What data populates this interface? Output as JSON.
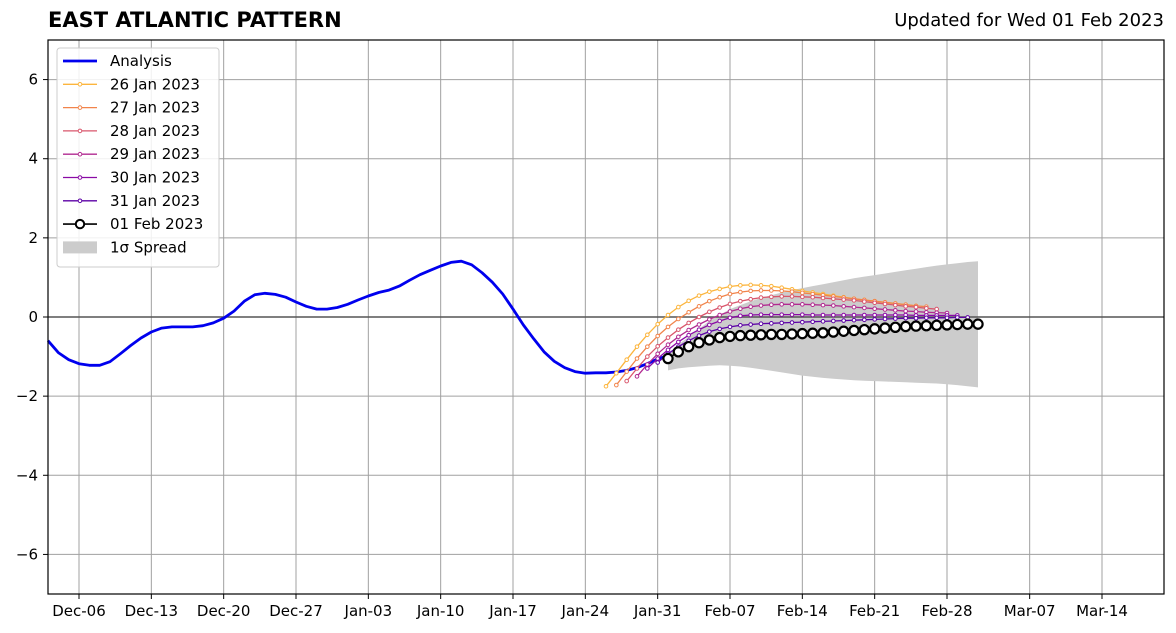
{
  "header": {
    "title": "EAST ATLANTIC PATTERN",
    "updated": "Updated for Wed 01 Feb 2023"
  },
  "chart_data": {
    "type": "line",
    "xlim": [
      "2023-12-03",
      "2024-03-20"
    ],
    "ylim": [
      -7,
      7
    ],
    "yticks": [
      -6,
      -4,
      -2,
      0,
      2,
      4,
      6
    ],
    "ytick_labels": [
      "−6",
      "−4",
      "−2",
      "0",
      "2",
      "4",
      "6"
    ],
    "xticks": [
      {
        "date": "2023-12-06",
        "label": "Dec-06"
      },
      {
        "date": "2023-12-13",
        "label": "Dec-13"
      },
      {
        "date": "2023-12-20",
        "label": "Dec-20"
      },
      {
        "date": "2023-12-27",
        "label": "Dec-27"
      },
      {
        "date": "2024-01-03",
        "label": "Jan-03"
      },
      {
        "date": "2024-01-10",
        "label": "Jan-10"
      },
      {
        "date": "2024-01-17",
        "label": "Jan-17"
      },
      {
        "date": "2024-01-24",
        "label": "Jan-24"
      },
      {
        "date": "2024-01-31",
        "label": "Jan-31"
      },
      {
        "date": "2024-02-07",
        "label": "Feb-07"
      },
      {
        "date": "2024-02-14",
        "label": "Feb-14"
      },
      {
        "date": "2024-02-21",
        "label": "Feb-21"
      },
      {
        "date": "2024-02-28",
        "label": "Feb-28"
      },
      {
        "date": "2024-03-07",
        "label": "Mar-07"
      },
      {
        "date": "2024-03-14",
        "label": "Mar-14"
      }
    ],
    "grid": true,
    "legend": {
      "placement": "top-left",
      "entries": [
        {
          "label": "Analysis",
          "color": "#0000ee",
          "kind": "line"
        },
        {
          "label": "26 Jan 2023",
          "color": "#fcb53d",
          "kind": "dots"
        },
        {
          "label": "27 Jan 2023",
          "color": "#f1844b",
          "kind": "dots"
        },
        {
          "label": "28 Jan 2023",
          "color": "#d9566c",
          "kind": "dots"
        },
        {
          "label": "29 Jan 2023",
          "color": "#b12a90",
          "kind": "dots"
        },
        {
          "label": "30 Jan 2023",
          "color": "#8a0aa5",
          "kind": "dots"
        },
        {
          "label": "31 Jan 2023",
          "color": "#5c01a6",
          "kind": "dots"
        },
        {
          "label": "01 Feb 2023",
          "color": "#000000",
          "kind": "circles"
        },
        {
          "label": "1σ Spread",
          "color": "#cccccc",
          "kind": "patch"
        }
      ]
    },
    "analysis": {
      "name": "Analysis",
      "color": "#0000ee",
      "x": [
        "2023-12-03",
        "2023-12-04",
        "2023-12-05",
        "2023-12-06",
        "2023-12-07",
        "2023-12-08",
        "2023-12-09",
        "2023-12-10",
        "2023-12-11",
        "2023-12-12",
        "2023-12-13",
        "2023-12-14",
        "2023-12-15",
        "2023-12-16",
        "2023-12-17",
        "2023-12-18",
        "2023-12-19",
        "2023-12-20",
        "2023-12-21",
        "2023-12-22",
        "2023-12-23",
        "2023-12-24",
        "2023-12-25",
        "2023-12-26",
        "2023-12-27",
        "2023-12-28",
        "2023-12-29",
        "2023-12-30",
        "2023-12-31",
        "2024-01-01",
        "2024-01-02",
        "2024-01-03",
        "2024-01-04",
        "2024-01-05",
        "2024-01-06",
        "2024-01-07",
        "2024-01-08",
        "2024-01-09",
        "2024-01-10",
        "2024-01-11",
        "2024-01-12",
        "2024-01-13",
        "2024-01-14",
        "2024-01-15",
        "2024-01-16",
        "2024-01-17",
        "2024-01-18",
        "2024-01-19",
        "2024-01-20",
        "2024-01-21",
        "2024-01-22",
        "2024-01-23",
        "2024-01-24",
        "2024-01-25",
        "2024-01-26",
        "2024-01-27",
        "2024-01-28",
        "2024-01-29",
        "2024-01-30",
        "2024-01-31",
        "2024-02-01"
      ],
      "y": [
        -0.6,
        -0.9,
        -1.08,
        -1.18,
        -1.22,
        -1.22,
        -1.13,
        -0.93,
        -0.72,
        -0.53,
        -0.38,
        -0.28,
        -0.25,
        -0.25,
        -0.25,
        -0.22,
        -0.15,
        -0.03,
        0.15,
        0.4,
        0.56,
        0.6,
        0.57,
        0.5,
        0.38,
        0.27,
        0.2,
        0.2,
        0.24,
        0.32,
        0.43,
        0.53,
        0.62,
        0.68,
        0.78,
        0.93,
        1.07,
        1.18,
        1.29,
        1.38,
        1.41,
        1.32,
        1.12,
        0.88,
        0.58,
        0.2,
        -0.2,
        -0.55,
        -0.88,
        -1.12,
        -1.28,
        -1.38,
        -1.42,
        -1.41,
        -1.41,
        -1.39,
        -1.35,
        -1.28,
        -1.18,
        -1.06,
        -0.98
      ]
    },
    "forecasts": [
      {
        "name": "26 Jan 2023",
        "color": "#fcb53d",
        "start": "2024-01-26",
        "end": "2024-02-25",
        "y": [
          -1.75,
          -1.42,
          -1.08,
          -0.75,
          -0.45,
          -0.18,
          0.05,
          0.25,
          0.41,
          0.54,
          0.64,
          0.71,
          0.77,
          0.8,
          0.81,
          0.8,
          0.78,
          0.74,
          0.7,
          0.66,
          0.62,
          0.58,
          0.54,
          0.5,
          0.46,
          0.43,
          0.4,
          0.37,
          0.34,
          0.31,
          0.28
        ]
      },
      {
        "name": "27 Jan 2023",
        "color": "#f1844b",
        "start": "2024-01-27",
        "end": "2024-02-26",
        "y": [
          -1.72,
          -1.38,
          -1.05,
          -0.75,
          -0.48,
          -0.25,
          -0.05,
          0.12,
          0.27,
          0.4,
          0.5,
          0.58,
          0.63,
          0.66,
          0.67,
          0.67,
          0.66,
          0.64,
          0.61,
          0.58,
          0.55,
          0.52,
          0.49,
          0.46,
          0.43,
          0.4,
          0.37,
          0.34,
          0.31,
          0.28,
          0.26
        ]
      },
      {
        "name": "28 Jan 2023",
        "color": "#d9566c",
        "start": "2024-01-28",
        "end": "2024-02-27",
        "y": [
          -1.62,
          -1.3,
          -1.0,
          -0.74,
          -0.52,
          -0.32,
          -0.15,
          0.0,
          0.13,
          0.24,
          0.33,
          0.4,
          0.45,
          0.49,
          0.51,
          0.52,
          0.52,
          0.51,
          0.5,
          0.48,
          0.46,
          0.44,
          0.42,
          0.39,
          0.36,
          0.33,
          0.3,
          0.27,
          0.25,
          0.22,
          0.2
        ]
      },
      {
        "name": "29 Jan 2023",
        "color": "#b12a90",
        "start": "2024-01-29",
        "end": "2024-02-28",
        "y": [
          -1.5,
          -1.2,
          -0.93,
          -0.7,
          -0.5,
          -0.33,
          -0.19,
          -0.06,
          0.05,
          0.14,
          0.21,
          0.26,
          0.29,
          0.31,
          0.32,
          0.32,
          0.32,
          0.31,
          0.3,
          0.29,
          0.27,
          0.25,
          0.23,
          0.21,
          0.19,
          0.17,
          0.15,
          0.14,
          0.12,
          0.11,
          0.1
        ]
      },
      {
        "name": "30 Jan 2023",
        "color": "#8a0aa5",
        "start": "2024-01-30",
        "end": "2024-02-29",
        "y": [
          -1.3,
          -1.05,
          -0.83,
          -0.63,
          -0.46,
          -0.32,
          -0.2,
          -0.1,
          -0.02,
          0.03,
          0.05,
          0.06,
          0.06,
          0.06,
          0.06,
          0.06,
          0.05,
          0.05,
          0.05,
          0.05,
          0.05,
          0.05,
          0.05,
          0.05,
          0.05,
          0.05,
          0.04,
          0.04,
          0.04,
          0.04,
          0.04
        ]
      },
      {
        "name": "31 Jan 2023",
        "color": "#5c01a6",
        "start": "2024-01-31",
        "end": "2024-03-01",
        "y": [
          -1.15,
          -0.93,
          -0.75,
          -0.6,
          -0.47,
          -0.37,
          -0.3,
          -0.25,
          -0.21,
          -0.19,
          -0.17,
          -0.16,
          -0.15,
          -0.14,
          -0.13,
          -0.12,
          -0.11,
          -0.1,
          -0.09,
          -0.08,
          -0.07,
          -0.06,
          -0.05,
          -0.04,
          -0.03,
          -0.03,
          -0.02,
          -0.02,
          -0.02,
          -0.01,
          -0.01
        ]
      },
      {
        "name": "01 Feb 2023",
        "color": "#000000",
        "start": "2024-02-01",
        "end": "2024-03-02",
        "y": [
          -1.05,
          -0.88,
          -0.75,
          -0.65,
          -0.58,
          -0.52,
          -0.49,
          -0.47,
          -0.46,
          -0.45,
          -0.44,
          -0.44,
          -0.43,
          -0.42,
          -0.41,
          -0.4,
          -0.38,
          -0.36,
          -0.34,
          -0.32,
          -0.3,
          -0.28,
          -0.26,
          -0.24,
          -0.23,
          -0.22,
          -0.21,
          -0.2,
          -0.19,
          -0.18,
          -0.18
        ]
      }
    ],
    "spread": {
      "name": "1σ Spread",
      "color": "#cccccc",
      "start": "2024-02-01",
      "end": "2024-03-02",
      "upper": [
        -0.95,
        -0.7,
        -0.5,
        -0.3,
        -0.1,
        0.05,
        0.2,
        0.3,
        0.4,
        0.48,
        0.55,
        0.62,
        0.68,
        0.73,
        0.78,
        0.83,
        0.88,
        0.93,
        0.98,
        1.02,
        1.06,
        1.1,
        1.14,
        1.18,
        1.22,
        1.26,
        1.3,
        1.33,
        1.36,
        1.39,
        1.41
      ],
      "lower": [
        -1.35,
        -1.3,
        -1.27,
        -1.25,
        -1.23,
        -1.22,
        -1.23,
        -1.25,
        -1.28,
        -1.32,
        -1.36,
        -1.4,
        -1.44,
        -1.48,
        -1.51,
        -1.54,
        -1.56,
        -1.58,
        -1.6,
        -1.61,
        -1.62,
        -1.63,
        -1.64,
        -1.65,
        -1.66,
        -1.67,
        -1.68,
        -1.7,
        -1.72,
        -1.75,
        -1.78
      ]
    }
  }
}
